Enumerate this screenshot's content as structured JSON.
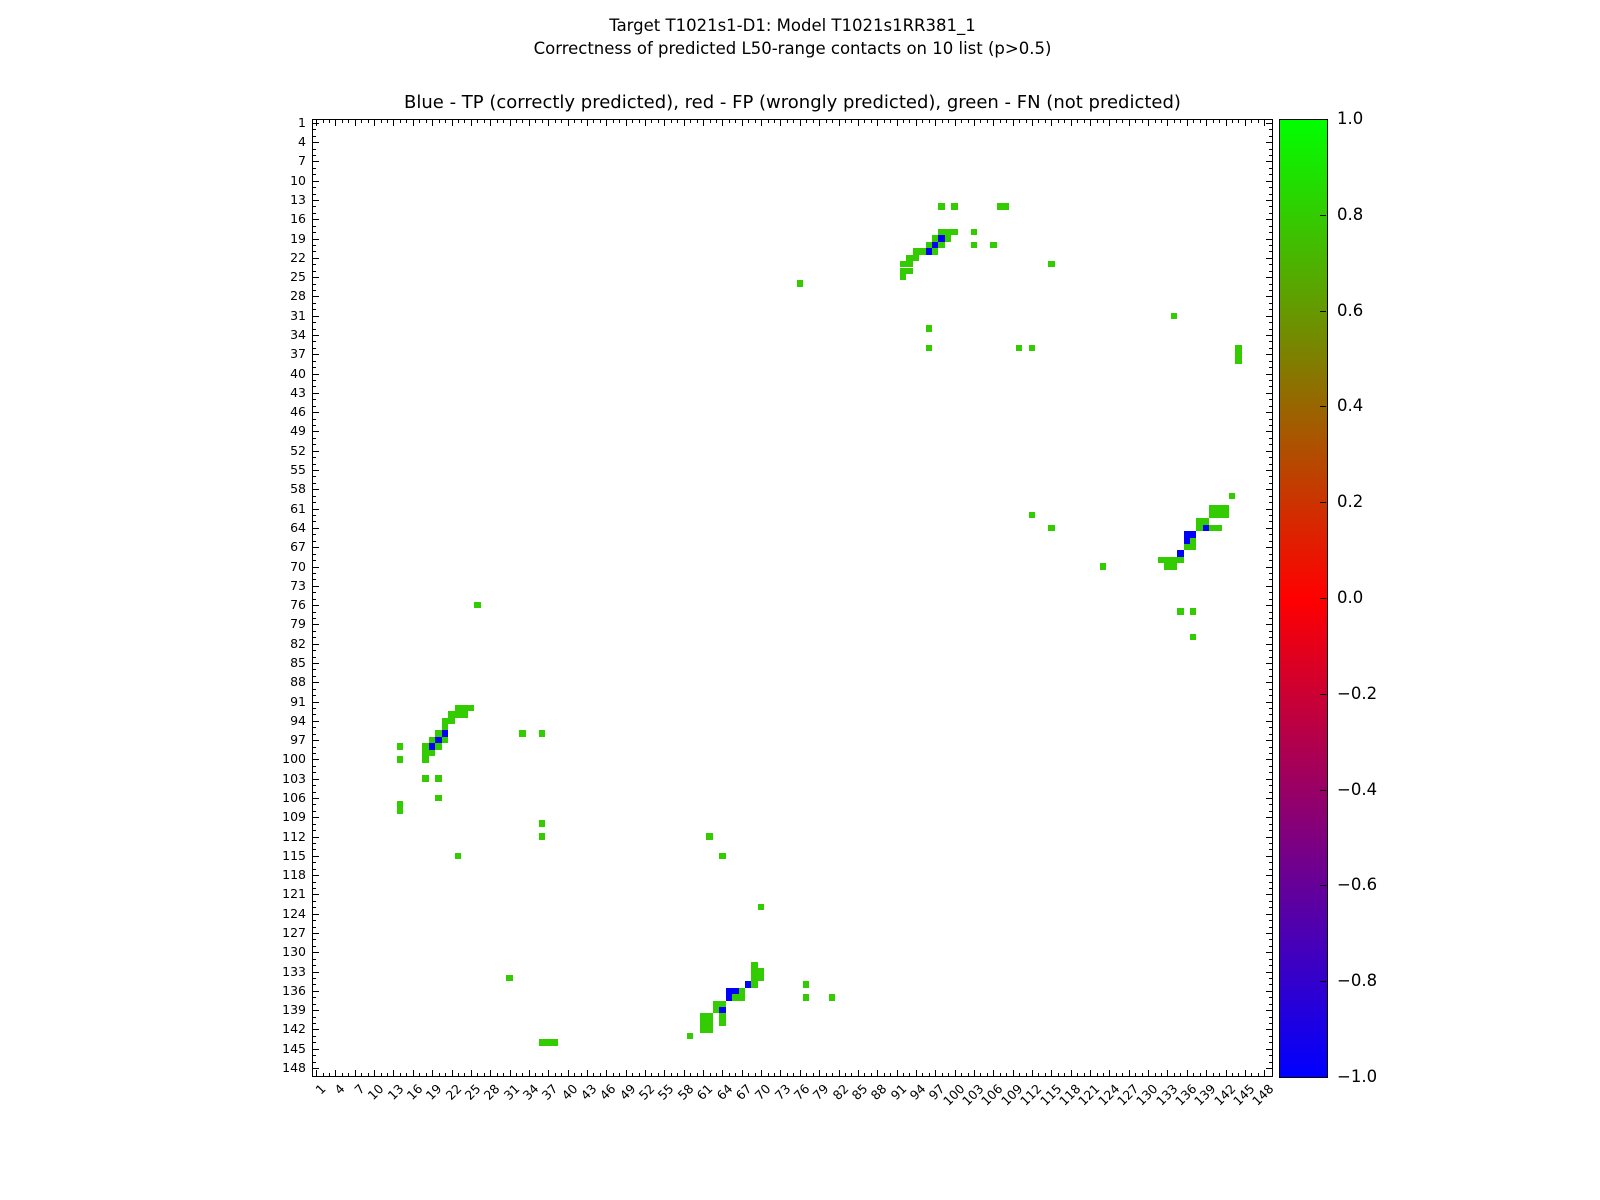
{
  "figure": {
    "suptitle_line1": "Target T1021s1-D1: Model T1021s1RR381_1",
    "suptitle_line2": "Correctness of predicted L50-range contacts on 10 list (p>0.5)",
    "axes_title": "Blue - TP (correctly predicted), red - FP (wrongly predicted), green - FN (not predicted)"
  },
  "chart_data": {
    "type": "heatmap",
    "title": "Blue - TP (correctly predicted), red - FP (wrongly predicted), green - FN (not predicted)",
    "xlabel": "",
    "ylabel": "",
    "x_range": [
      1,
      148
    ],
    "y_range": [
      1,
      148
    ],
    "y_axis_direction": "inverted (1 at top)",
    "grid": false,
    "axis_tick_labels": [
      1,
      4,
      7,
      10,
      13,
      16,
      19,
      22,
      25,
      28,
      31,
      34,
      37,
      40,
      43,
      46,
      49,
      52,
      55,
      58,
      61,
      64,
      67,
      70,
      73,
      76,
      79,
      82,
      85,
      88,
      91,
      94,
      97,
      100,
      103,
      106,
      109,
      112,
      115,
      118,
      121,
      124,
      127,
      130,
      133,
      136,
      139,
      142,
      145,
      148
    ],
    "legend": {
      "TP_color_meaning": "blue - TP (correctly predicted)",
      "FP_color_meaning": "red - FP (wrongly predicted)",
      "FN_color_meaning": "green - FN (not predicted)"
    },
    "colors": {
      "fn_green": "#33cc00",
      "tp_blue": "#0000ff",
      "fp_red": "#ff0000",
      "frame": "#000000"
    },
    "colorbar": {
      "min": -1.0,
      "max": 1.0,
      "tick_labels": [
        "1.0",
        "0.8",
        "0.6",
        "0.4",
        "0.2",
        "0.0",
        "−0.2",
        "−0.4",
        "−0.6",
        "−0.8",
        "−1.0"
      ],
      "gradient_top_to_bottom": [
        "#00ff00",
        "#7f7f00",
        "#ff0000",
        "#7f007f",
        "#0000ff"
      ],
      "position": "right"
    },
    "cells": {
      "comment": "each entry is [x_residue, y_residue]; matrix is symmetric",
      "green_fn": [
        [
          98,
          14
        ],
        [
          100,
          14
        ],
        [
          107,
          14
        ],
        [
          108,
          14
        ],
        [
          98,
          18
        ],
        [
          99,
          18
        ],
        [
          100,
          18
        ],
        [
          103,
          18
        ],
        [
          97,
          19
        ],
        [
          99,
          19
        ],
        [
          96,
          20
        ],
        [
          98,
          20
        ],
        [
          103,
          20
        ],
        [
          106,
          20
        ],
        [
          94,
          21
        ],
        [
          95,
          21
        ],
        [
          97,
          21
        ],
        [
          93,
          22
        ],
        [
          94,
          22
        ],
        [
          92,
          23
        ],
        [
          93,
          23
        ],
        [
          92,
          24
        ],
        [
          93,
          24
        ],
        [
          92,
          25
        ],
        [
          14,
          98
        ],
        [
          14,
          100
        ],
        [
          14,
          107
        ],
        [
          14,
          108
        ],
        [
          18,
          98
        ],
        [
          18,
          99
        ],
        [
          18,
          100
        ],
        [
          18,
          103
        ],
        [
          19,
          97
        ],
        [
          19,
          99
        ],
        [
          20,
          96
        ],
        [
          20,
          98
        ],
        [
          20,
          103
        ],
        [
          20,
          106
        ],
        [
          21,
          94
        ],
        [
          21,
          95
        ],
        [
          21,
          97
        ],
        [
          22,
          93
        ],
        [
          22,
          94
        ],
        [
          23,
          92
        ],
        [
          23,
          93
        ],
        [
          24,
          92
        ],
        [
          24,
          93
        ],
        [
          25,
          92
        ],
        [
          132,
          69
        ],
        [
          133,
          69
        ],
        [
          134,
          69
        ],
        [
          135,
          69
        ],
        [
          133,
          70
        ],
        [
          134,
          70
        ],
        [
          136,
          67
        ],
        [
          137,
          66
        ],
        [
          137,
          67
        ],
        [
          138,
          63
        ],
        [
          138,
          64
        ],
        [
          139,
          63
        ],
        [
          140,
          61
        ],
        [
          141,
          61
        ],
        [
          142,
          61
        ],
        [
          140,
          62
        ],
        [
          141,
          62
        ],
        [
          142,
          62
        ],
        [
          140,
          64
        ],
        [
          141,
          64
        ],
        [
          143,
          59
        ],
        [
          69,
          132
        ],
        [
          69,
          133
        ],
        [
          70,
          133
        ],
        [
          69,
          134
        ],
        [
          70,
          134
        ],
        [
          69,
          135
        ],
        [
          67,
          136
        ],
        [
          66,
          137
        ],
        [
          67,
          137
        ],
        [
          63,
          138
        ],
        [
          64,
          138
        ],
        [
          63,
          139
        ],
        [
          61,
          140
        ],
        [
          62,
          140
        ],
        [
          61,
          141
        ],
        [
          62,
          141
        ],
        [
          61,
          142
        ],
        [
          62,
          142
        ],
        [
          64,
          140
        ],
        [
          64,
          141
        ],
        [
          59,
          143
        ],
        [
          76,
          26
        ],
        [
          26,
          76
        ],
        [
          96,
          33
        ],
        [
          33,
          96
        ],
        [
          96,
          36
        ],
        [
          36,
          96
        ],
        [
          110,
          36
        ],
        [
          36,
          110
        ],
        [
          112,
          36
        ],
        [
          36,
          112
        ],
        [
          115,
          23
        ],
        [
          23,
          115
        ],
        [
          134,
          31
        ],
        [
          31,
          134
        ],
        [
          112,
          62
        ],
        [
          62,
          112
        ],
        [
          115,
          64
        ],
        [
          64,
          115
        ],
        [
          123,
          70
        ],
        [
          70,
          123
        ],
        [
          135,
          77
        ],
        [
          77,
          135
        ],
        [
          137,
          77
        ],
        [
          77,
          137
        ],
        [
          137,
          81
        ],
        [
          81,
          137
        ],
        [
          144,
          36
        ],
        [
          36,
          144
        ],
        [
          144,
          37
        ],
        [
          37,
          144
        ],
        [
          144,
          38
        ],
        [
          38,
          144
        ]
      ],
      "blue_tp": [
        [
          98,
          19
        ],
        [
          97,
          20
        ],
        [
          96,
          21
        ],
        [
          19,
          98
        ],
        [
          20,
          97
        ],
        [
          21,
          96
        ],
        [
          135,
          68
        ],
        [
          136,
          65
        ],
        [
          136,
          66
        ],
        [
          137,
          65
        ],
        [
          139,
          64
        ],
        [
          68,
          135
        ],
        [
          65,
          136
        ],
        [
          66,
          136
        ],
        [
          65,
          137
        ],
        [
          64,
          139
        ]
      ],
      "red_fp": []
    }
  }
}
